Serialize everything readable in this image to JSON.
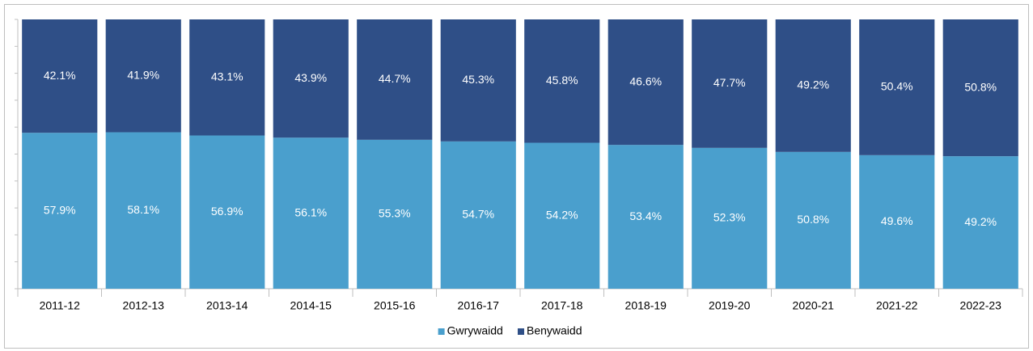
{
  "chart_data": {
    "type": "stacked_bar",
    "categories": [
      "2011-12",
      "2012-13",
      "2013-14",
      "2014-15",
      "2015-16",
      "2016-17",
      "2017-18",
      "2018-19",
      "2019-20",
      "2020-21",
      "2021-22",
      "2022-23"
    ],
    "series": [
      {
        "name": "Gwrywaidd",
        "color": "#4a9fcd",
        "values": [
          57.9,
          58.1,
          56.9,
          56.1,
          55.3,
          54.7,
          54.2,
          53.4,
          52.3,
          50.8,
          49.6,
          49.2
        ],
        "value_labels": [
          "57.9%",
          "58.1%",
          "56.9%",
          "56.1%",
          "55.3%",
          "54.7%",
          "54.2%",
          "53.4%",
          "52.3%",
          "50.8%",
          "49.6%",
          "49.2%"
        ]
      },
      {
        "name": "Benywaidd",
        "color": "#2f4f87",
        "values": [
          42.1,
          41.9,
          43.1,
          43.9,
          44.7,
          45.3,
          45.8,
          46.6,
          47.7,
          49.2,
          50.4,
          50.8
        ],
        "value_labels": [
          "42.1%",
          "41.9%",
          "43.1%",
          "43.9%",
          "44.7%",
          "45.3%",
          "45.8%",
          "46.6%",
          "47.7%",
          "49.2%",
          "50.4%",
          "50.8%"
        ]
      }
    ],
    "ylim": [
      0,
      100
    ],
    "yticks": [
      0,
      10,
      20,
      30,
      40,
      50,
      60,
      70,
      80,
      90,
      100
    ],
    "legend": "bottom"
  }
}
